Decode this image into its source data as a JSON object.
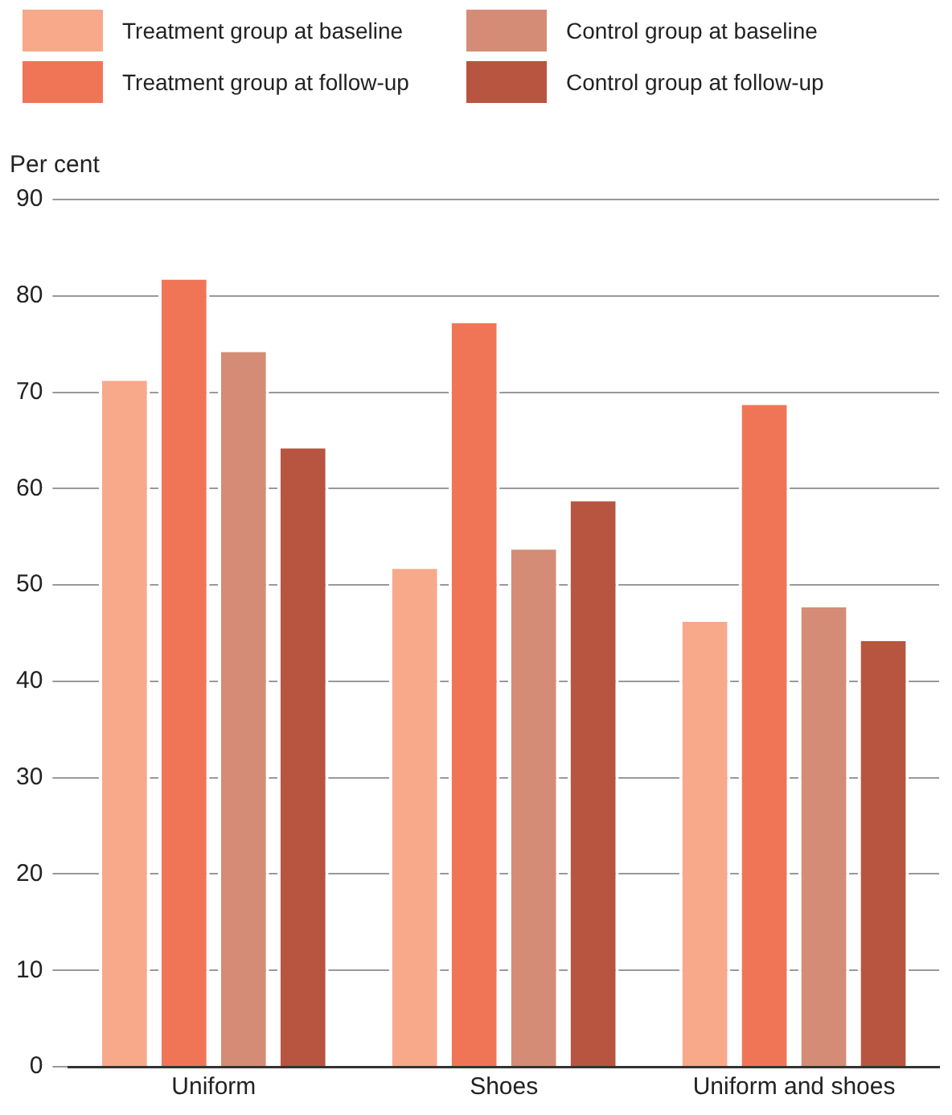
{
  "chart_data": {
    "type": "bar",
    "ylabel": "Per cent",
    "categories": [
      "Uniform",
      "Shoes",
      "Uniform and shoes"
    ],
    "series": [
      {
        "name": "Treatment group at baseline",
        "color": "#f7a98a",
        "values": [
          71.5,
          52,
          46.5
        ]
      },
      {
        "name": "Treatment group at follow-up",
        "color": "#f07556",
        "values": [
          82,
          77.5,
          69
        ]
      },
      {
        "name": "Control group at baseline",
        "color": "#d48c76",
        "values": [
          74.5,
          54,
          48
        ]
      },
      {
        "name": "Control group at follow-up",
        "color": "#b85540",
        "values": [
          64.5,
          59,
          44.5
        ]
      }
    ],
    "ylim": [
      0,
      90
    ],
    "yticks": [
      0,
      10,
      20,
      30,
      40,
      50,
      60,
      70,
      80,
      90
    ],
    "grid": "y",
    "legend": "top"
  }
}
